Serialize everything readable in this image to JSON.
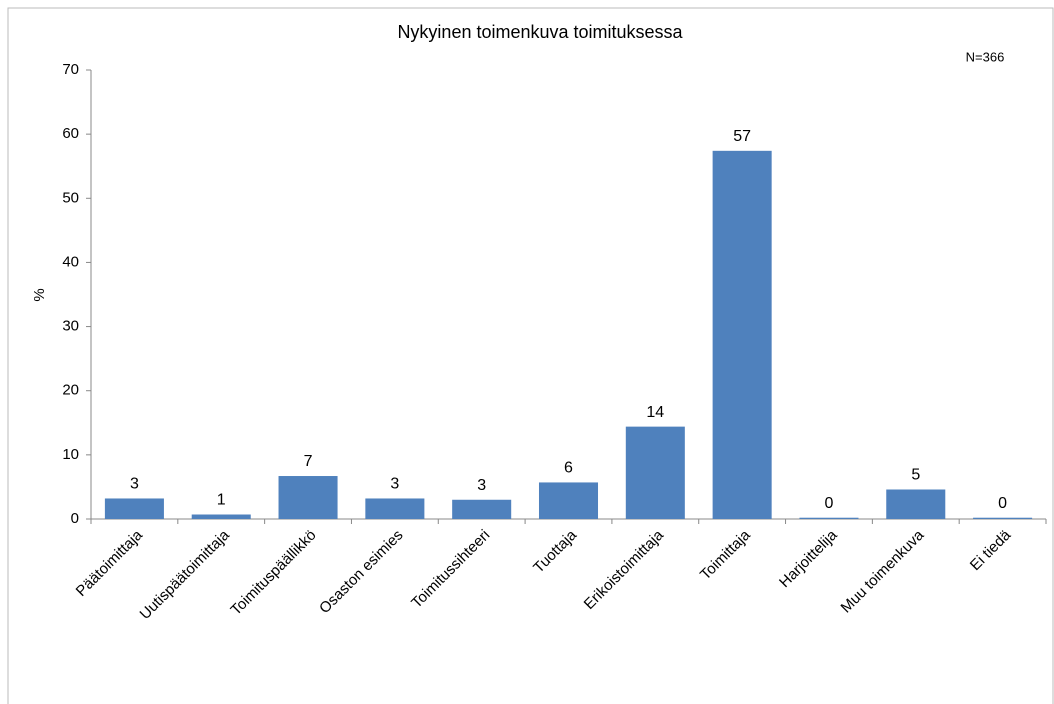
{
  "chart_data": {
    "type": "bar",
    "title": "Nykyinen toimenkuva toimituksessa",
    "annotation": "N=366",
    "ylabel": "%",
    "categories": [
      "Päätoimittaja",
      "Uutispäätoimittaja",
      "Toimituspäällikkö",
      "Osaston esimies",
      "Toimitussihteeri",
      "Tuottaja",
      "Erikoistoimittaja",
      "Toimittaja",
      "Harjoittelija",
      "Muu toimenkuva",
      "Ei tiedä"
    ],
    "values": [
      3.2,
      0.7,
      6.7,
      3.2,
      3.0,
      5.7,
      14.4,
      57.4,
      0.2,
      4.6,
      0.2
    ],
    "value_labels": [
      "3",
      "1",
      "7",
      "3",
      "3",
      "6",
      "14",
      "57",
      "0",
      "5",
      "0"
    ],
    "color": "#4f81bd",
    "ylim": [
      0,
      70
    ],
    "yticks": [
      0,
      10,
      20,
      30,
      40,
      50,
      60,
      70
    ],
    "grid": false
  }
}
